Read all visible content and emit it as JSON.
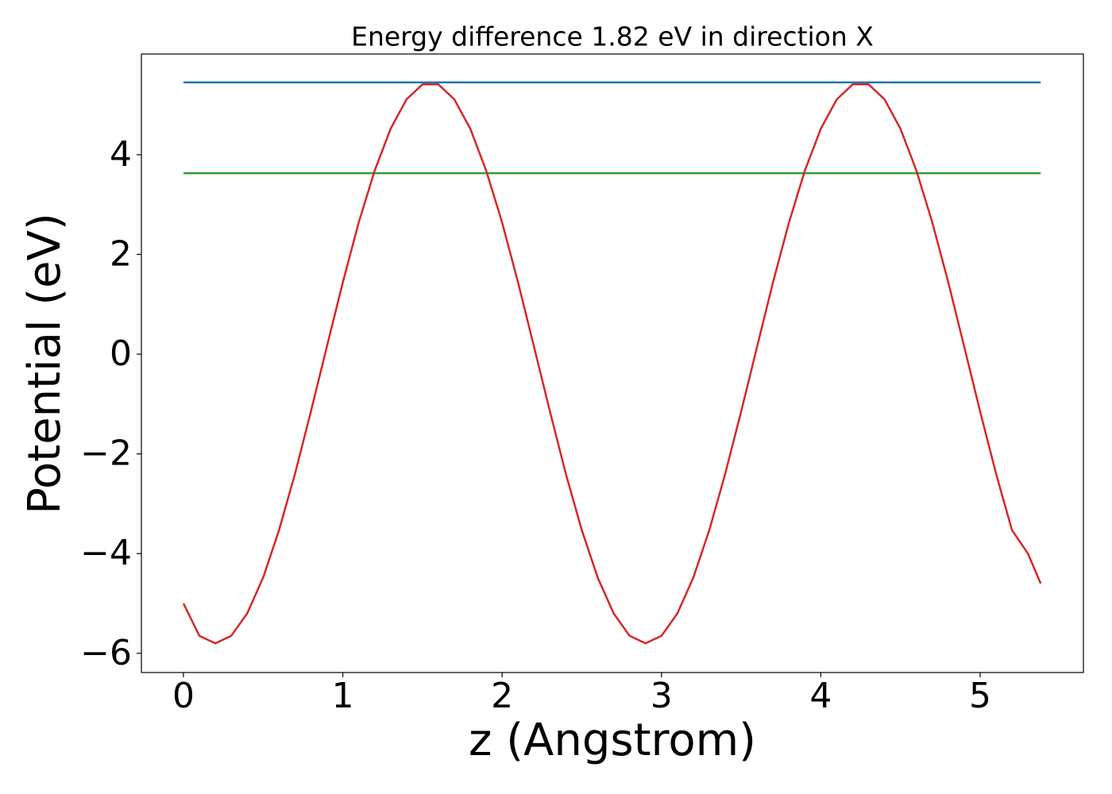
{
  "chart_data": {
    "type": "line",
    "title": "Energy difference 1.82 eV in direction X",
    "x_label": "z (Angstrom)",
    "y_label": "Potential (eV)",
    "xlim": [
      -0.264,
      5.648
    ],
    "ylim": [
      -6.385,
      6.02
    ],
    "xticks": [
      0,
      1,
      2,
      3,
      4,
      5
    ],
    "yticks": [
      {
        "value": -6,
        "label": "−6"
      },
      {
        "value": -4,
        "label": "−4"
      },
      {
        "value": -2,
        "label": "−2"
      },
      0,
      2,
      4
    ],
    "grid": false,
    "series": [
      {
        "color": "#1f77b4",
        "x": [
          0,
          5.38
        ],
        "values": [
          5.45,
          5.45
        ]
      },
      {
        "color": "#2ca02c",
        "x": [
          0,
          5.38
        ],
        "values": [
          3.63,
          3.63
        ]
      },
      {
        "color": "#d62728",
        "x": [
          0,
          0.1,
          0.2,
          0.3,
          0.4,
          0.5,
          0.6,
          0.7,
          0.8,
          0.9,
          1.0,
          1.1,
          1.2,
          1.3,
          1.4,
          1.5,
          1.6,
          1.7,
          1.8,
          1.9,
          2.0,
          2.1,
          2.2,
          2.3,
          2.4,
          2.5,
          2.6,
          2.7,
          2.8,
          2.9,
          3.0,
          3.1,
          3.2,
          3.3,
          3.4,
          3.5,
          3.6,
          3.7,
          3.8,
          3.9,
          4.0,
          4.1,
          4.2,
          4.3,
          4.4,
          4.5,
          4.6,
          4.7,
          4.8,
          4.9,
          5.0,
          5.1,
          5.2,
          5.3,
          5.38
        ],
        "values": [
          -5.0,
          -5.65,
          -5.8,
          -5.65,
          -5.2,
          -4.48,
          -3.53,
          -2.4,
          -1.15,
          0.15,
          1.44,
          2.64,
          3.68,
          4.52,
          5.11,
          5.41,
          5.41,
          5.11,
          4.52,
          3.68,
          2.64,
          1.44,
          0.15,
          -1.15,
          -2.4,
          -3.53,
          -4.48,
          -5.2,
          -5.65,
          -5.8,
          -5.65,
          -5.2,
          -4.48,
          -3.53,
          -2.4,
          -1.15,
          0.15,
          1.44,
          2.64,
          3.68,
          4.52,
          5.11,
          5.41,
          5.41,
          5.11,
          4.52,
          3.68,
          2.64,
          1.44,
          0.15,
          -1.15,
          -2.4,
          -3.53,
          -4.0,
          -4.6
        ]
      }
    ]
  }
}
